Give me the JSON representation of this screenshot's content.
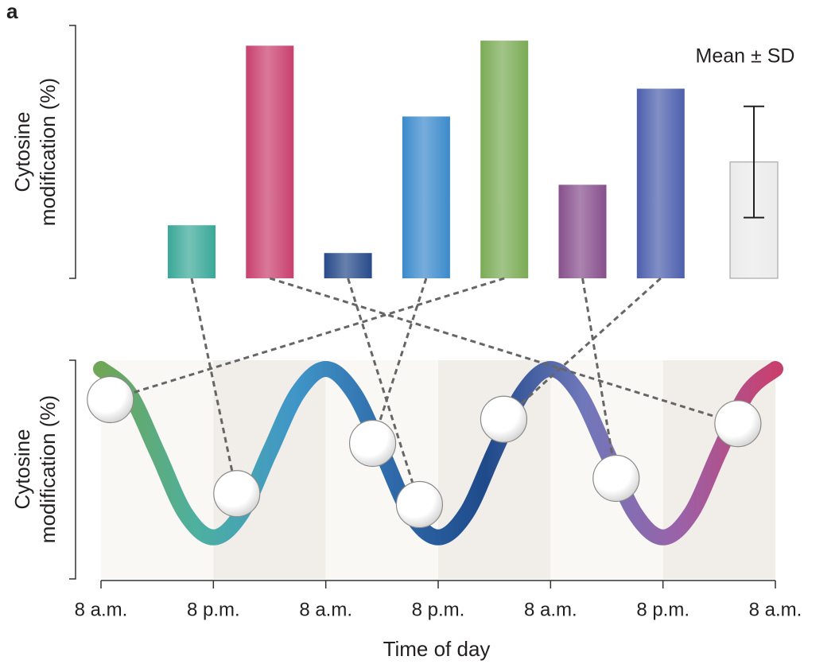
{
  "chart_data": [
    {
      "type": "bar",
      "panel_label": "a",
      "y_label": [
        "Cytosine",
        "modification (%)"
      ],
      "annotation": "Mean ± SD",
      "categories": [
        null,
        null,
        null,
        null,
        null,
        null,
        null,
        null
      ],
      "values": [
        21,
        92,
        10,
        64,
        94,
        37,
        75,
        46
      ],
      "errors": [
        null,
        null,
        null,
        null,
        null,
        null,
        null,
        22
      ],
      "colors": [
        "#3aa898",
        "#c8406e",
        "#274a8a",
        "#3b8acb",
        "#7aab55",
        "#874f8c",
        "#4c5fad",
        "#ebebeb"
      ],
      "ylim": [
        0,
        100
      ]
    },
    {
      "type": "line",
      "y_label": [
        "Cytosine",
        "modification (%)"
      ],
      "x_label": "Time of day",
      "xlim": [
        0,
        72
      ],
      "ylim": [
        0,
        100
      ],
      "xticks": [
        {
          "value": 0,
          "label": "8 a.m."
        },
        {
          "value": 12,
          "label": "8 p.m."
        },
        {
          "value": 24,
          "label": "8 a.m."
        },
        {
          "value": 36,
          "label": "8 p.m."
        },
        {
          "value": 48,
          "label": "8 a.m."
        },
        {
          "value": 60,
          "label": "8 p.m."
        },
        {
          "value": 72,
          "label": "8 a.m."
        }
      ],
      "x": [
        0,
        3,
        6,
        9,
        12,
        15,
        18,
        21,
        24,
        27,
        30,
        33,
        36,
        39,
        42,
        45,
        48,
        51,
        54,
        57,
        60,
        63,
        66,
        69,
        72
      ],
      "series": [
        {
          "values": [
            96,
            85,
            58,
            30,
            19,
            30,
            58,
            85,
            96,
            85,
            58,
            30,
            19,
            30,
            58,
            85,
            96,
            85,
            58,
            30,
            19,
            30,
            58,
            85,
            96
          ],
          "gradient": [
            "#6fa657",
            "#4db0a0",
            "#4096c8",
            "#2f6aaa",
            "#1f4a8a",
            "#6f78ba",
            "#9a62a8",
            "#c8406e"
          ]
        }
      ],
      "points": {
        "x": [
          14.5,
          68,
          34,
          29,
          1,
          55,
          43
        ],
        "y": [
          39,
          71,
          34,
          62,
          82,
          46,
          73
        ]
      }
    }
  ]
}
